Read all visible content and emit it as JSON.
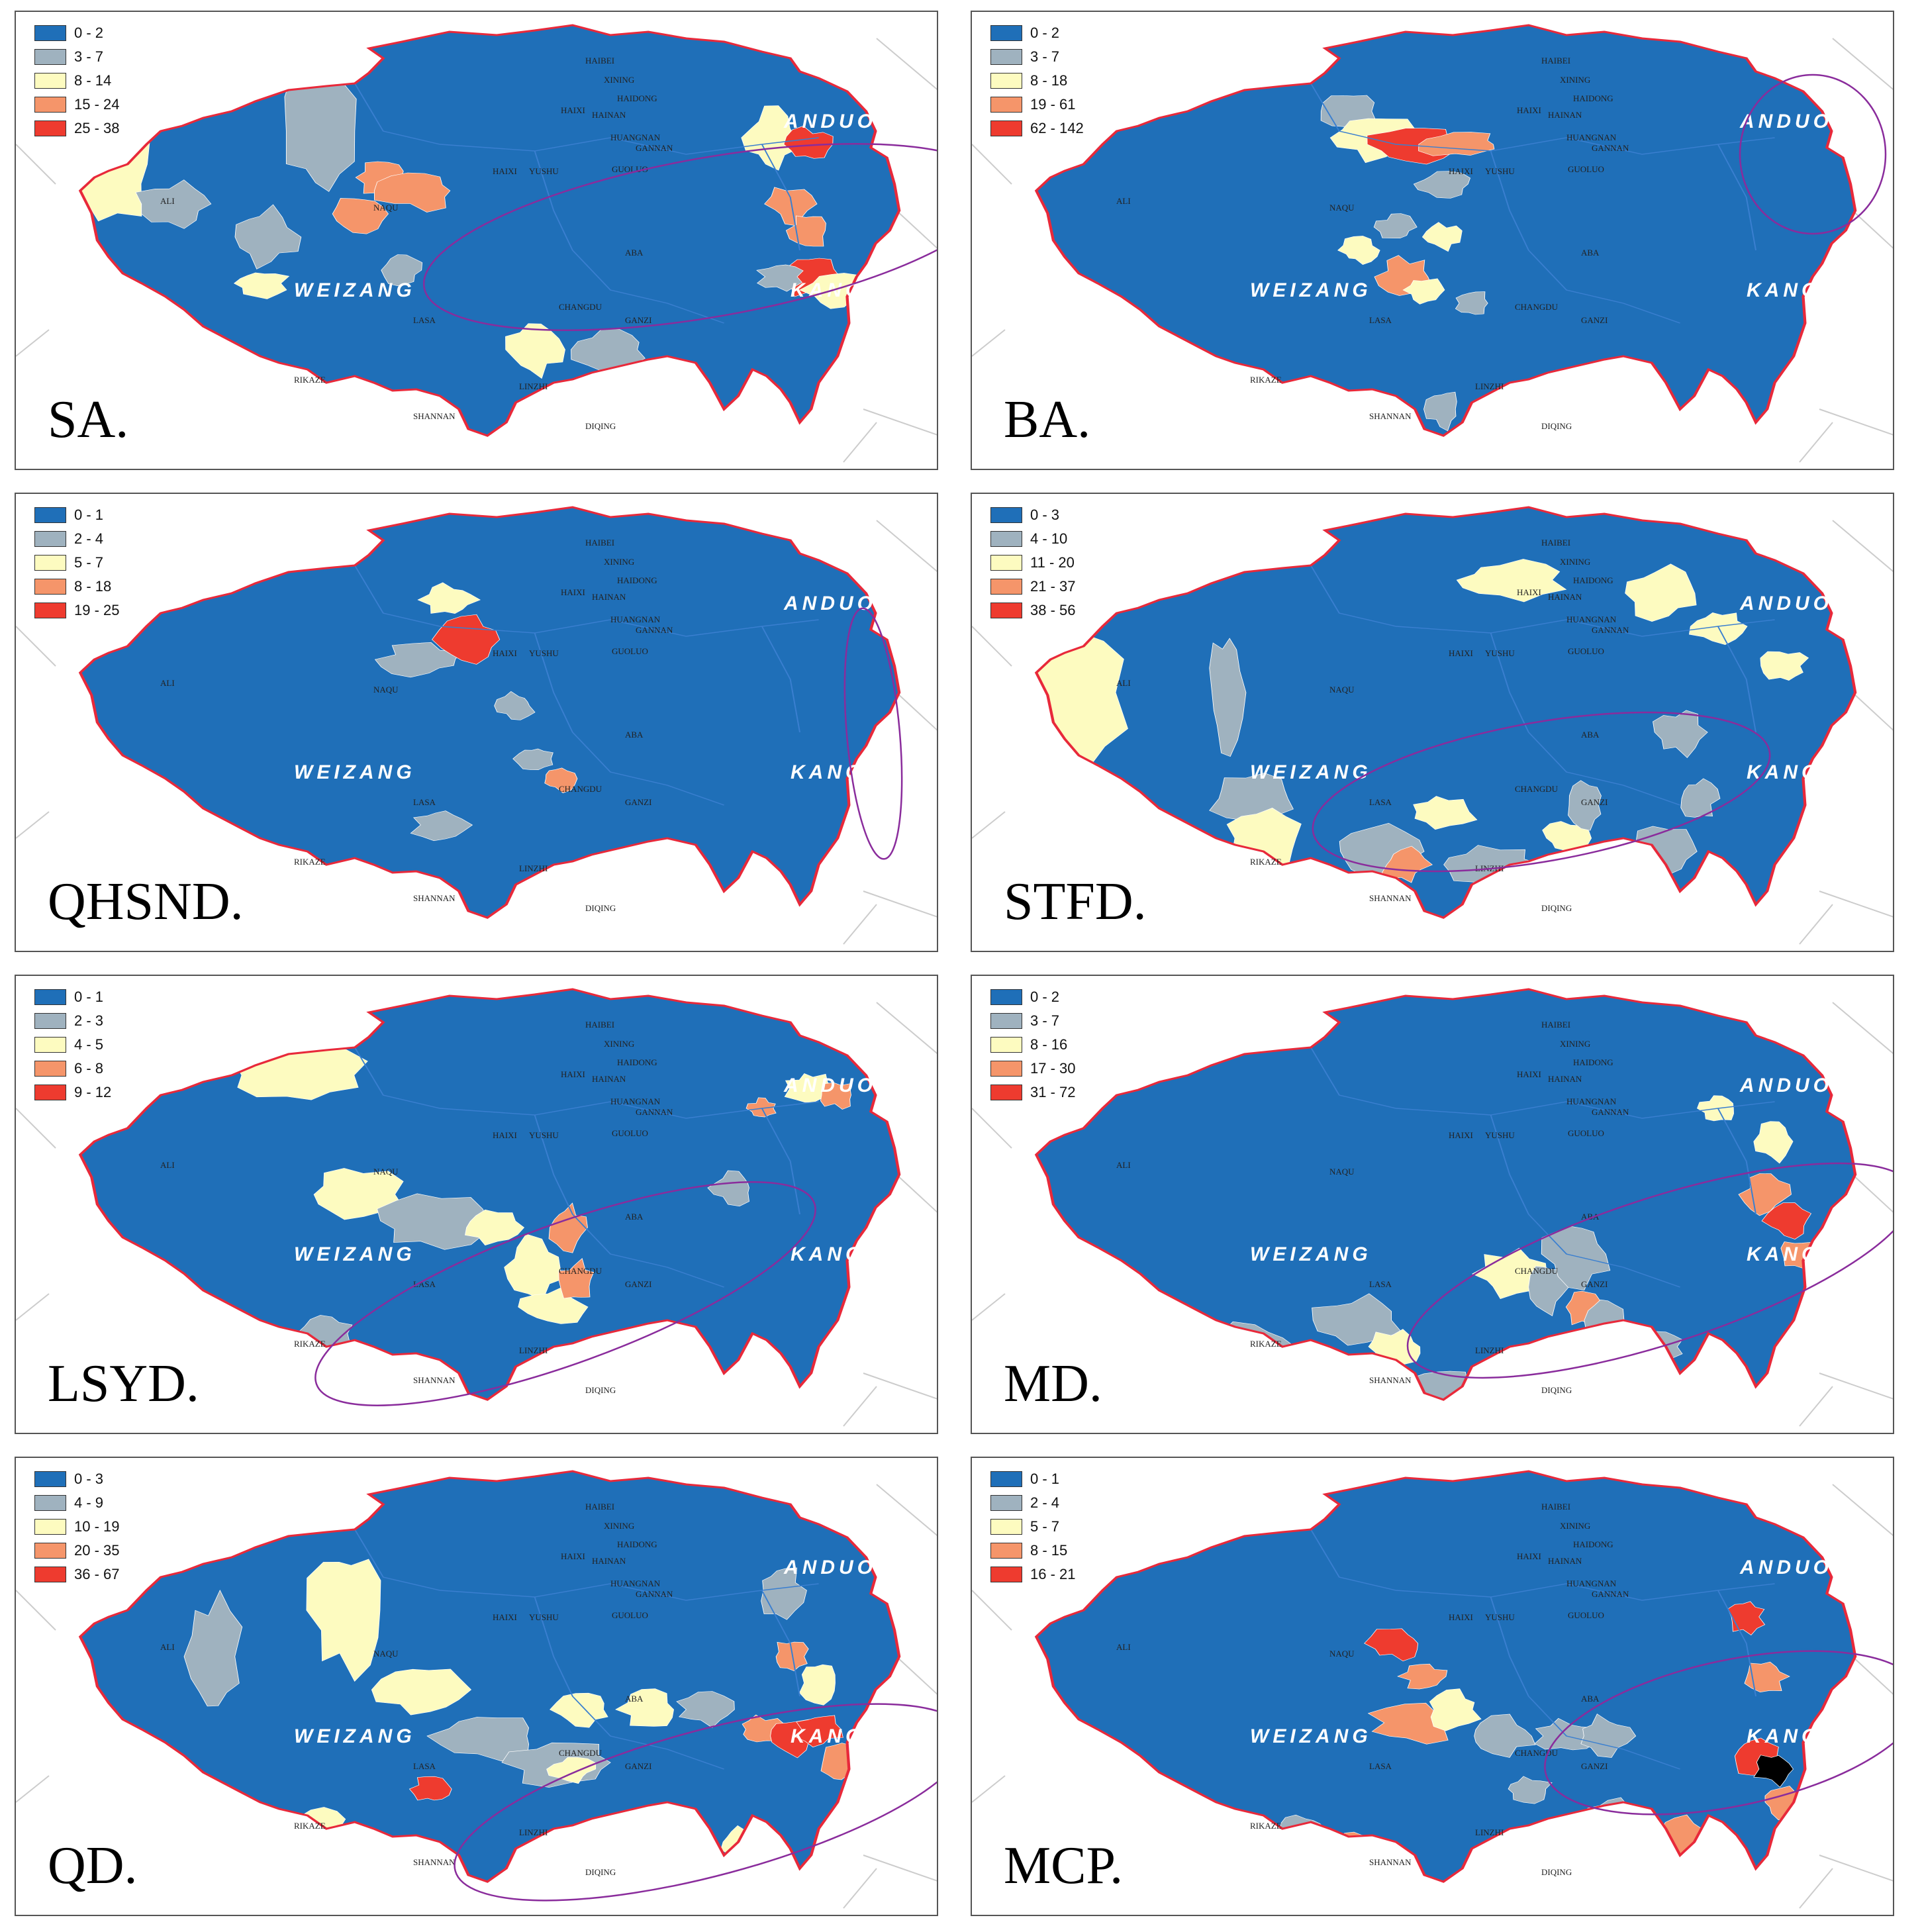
{
  "colors": {
    "class1": "#1f6fb8",
    "class2": "#9fb2bf",
    "class3": "#fdfbc0",
    "class4": "#f5956a",
    "class5": "#ee3b2f",
    "border": "#e8293a",
    "ellipse": "#8a2c9c",
    "inner_border": "#3a7fd0"
  },
  "panels": [
    {
      "label": "SA.",
      "legend": [
        "0 - 2",
        "3 - 7",
        "8 - 14",
        "15 - 24",
        "25 - 38"
      ],
      "prefectures": [
        "HAIBEI",
        "XINING",
        "HAIXI",
        "HAIDONG",
        "HAINAN",
        "HUANGNAN",
        "GANNAN",
        "GUOLUO",
        "YUSHU",
        "HAIXI",
        "ALI",
        "NAQU",
        "ABA",
        "CHANGDU",
        "GANZI",
        "LASA",
        "RIKAZE",
        "LINZHI",
        "SHANNAN",
        "DIQING"
      ],
      "regions": [
        "ANDUO",
        "WEIZANG",
        "KANGBA"
      ]
    },
    {
      "label": "BA.",
      "legend": [
        "0 - 2",
        "3 - 7",
        "8 - 18",
        "19 - 61",
        "62 - 142"
      ],
      "prefectures": [
        "HAIBEI",
        "XINING",
        "HAIXI",
        "HAIDONG",
        "HAINAN",
        "HUANGNAN",
        "GANNAN",
        "GUOLUO",
        "YUSHU",
        "HAIXI",
        "ALI",
        "NAQU",
        "ABA",
        "CHANGDU",
        "GANZI",
        "LASA",
        "RIKAZE",
        "LINZHI",
        "SHANNAN",
        "DIQING"
      ],
      "regions": [
        "ANDUO",
        "WEIZANG",
        "KANGBA"
      ]
    },
    {
      "label": "QHSND.",
      "legend": [
        "0 - 1",
        "2 - 4",
        "5 - 7",
        "8 - 18",
        "19 - 25"
      ],
      "prefectures": [
        "HAIBEI",
        "XINING",
        "HAIXI",
        "HAIDONG",
        "HAINAN",
        "HUANGNAN",
        "GANNAN",
        "GUOLUO",
        "YUSHU",
        "HAIXI",
        "ALI",
        "NAQU",
        "ABA",
        "CHANGDU",
        "GANZI",
        "LASA",
        "RIKAZE",
        "LINZHI",
        "SHANNAN",
        "DIQING"
      ],
      "regions": [
        "ANDUO",
        "WEIZANG",
        "KANGBA"
      ]
    },
    {
      "label": "STFD.",
      "legend": [
        "0 - 3",
        "4 - 10",
        "11 - 20",
        "21 - 37",
        "38 - 56"
      ],
      "prefectures": [
        "HAIBEI",
        "XINING",
        "HAIXI",
        "HAIDONG",
        "HAINAN",
        "HUANGNAN",
        "GANNAN",
        "GUOLUO",
        "YUSHU",
        "HAIXI",
        "ALI",
        "NAQU",
        "ABA",
        "CHANGDU",
        "GANZI",
        "LASA",
        "RIKAZE",
        "LINZHI",
        "SHANNAN",
        "DIQING"
      ],
      "regions": [
        "ANDUO",
        "WEIZANG",
        "KANGBA"
      ]
    },
    {
      "label": "LSYD.",
      "legend": [
        "0 - 1",
        "2 - 3",
        "4 - 5",
        "6 - 8",
        "9 - 12"
      ],
      "prefectures": [
        "HAIBEI",
        "XINING",
        "HAIXI",
        "HAIDONG",
        "HAINAN",
        "HUANGNAN",
        "GANNAN",
        "GUOLUO",
        "YUSHU",
        "HAIXI",
        "ALI",
        "NAQU",
        "ABA",
        "CHANGDU",
        "GANZI",
        "LASA",
        "RIKAZE",
        "LINZHI",
        "SHANNAN",
        "DIQING"
      ],
      "regions": [
        "ANDUO",
        "WEIZANG",
        "KANGBA"
      ]
    },
    {
      "label": "MD.",
      "legend": [
        "0 - 2",
        "3 - 7",
        "8 - 16",
        "17 - 30",
        "31 - 72"
      ],
      "prefectures": [
        "HAIBEI",
        "XINING",
        "HAIXI",
        "HAIDONG",
        "HAINAN",
        "HUANGNAN",
        "GANNAN",
        "GUOLUO",
        "YUSHU",
        "HAIXI",
        "ALI",
        "NAQU",
        "ABA",
        "CHANGDU",
        "GANZI",
        "LASA",
        "RIKAZE",
        "LINZHI",
        "SHANNAN",
        "DIQING"
      ],
      "regions": [
        "ANDUO",
        "WEIZANG",
        "KANGBA"
      ]
    },
    {
      "label": "QD.",
      "legend": [
        "0 - 3",
        "4 - 9",
        "10 - 19",
        "20 - 35",
        "36 - 67"
      ],
      "prefectures": [
        "HAIBEI",
        "XINING",
        "HAIXI",
        "HAIDONG",
        "HAINAN",
        "HUANGNAN",
        "GANNAN",
        "GUOLUO",
        "YUSHU",
        "HAIXI",
        "ALI",
        "NAQU",
        "ABA",
        "CHANGDU",
        "GANZI",
        "LASA",
        "RIKAZE",
        "LINZHI",
        "SHANNAN",
        "DIQING"
      ],
      "regions": [
        "ANDUO",
        "WEIZANG",
        "KANGBA"
      ]
    },
    {
      "label": "MCP.",
      "legend": [
        "0 - 1",
        "2 - 4",
        "5 - 7",
        "8 - 15",
        "16 - 21"
      ],
      "prefectures": [
        "HAIBEI",
        "XINING",
        "HAIXI",
        "HAIDONG",
        "HAINAN",
        "HUANGNAN",
        "GANNAN",
        "GUOLUO",
        "YUSHU",
        "HAIXI",
        "ALI",
        "NAQU",
        "ABA",
        "CHANGDU",
        "GANZI",
        "LASA",
        "RIKAZE",
        "LINZHI",
        "SHANNAN",
        "DIQING"
      ],
      "regions": [
        "ANDUO",
        "WEIZANG",
        "KANGBA"
      ]
    }
  ]
}
